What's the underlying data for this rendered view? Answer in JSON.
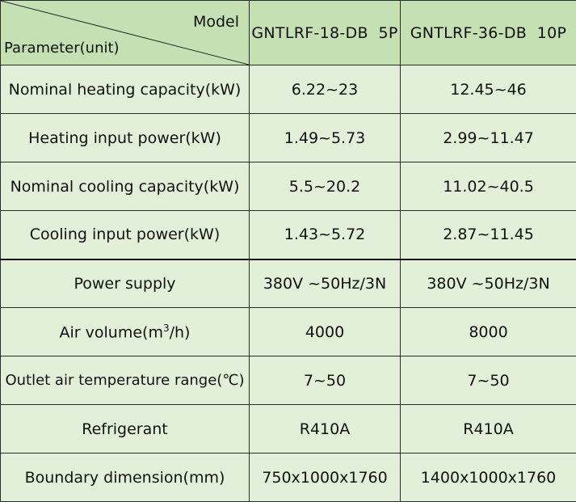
{
  "header": {
    "corner_top": "Model",
    "corner_bottom": "Parameter(unit)",
    "models": [
      "GNTLRF-18-DB  5P",
      "GNTLRF-36-DB  10P"
    ]
  },
  "rows": [
    {
      "param": "Nominal heating capacity(kW)",
      "v1": "6.22~23",
      "v2": "12.45~46"
    },
    {
      "param": "Heating input power(kW)",
      "v1": "1.49~5.73",
      "v2": "2.99~11.47"
    },
    {
      "param": "Nominal cooling capacity(kW)",
      "v1": "5.5~20.2",
      "v2": "11.02~40.5"
    },
    {
      "param": "Cooling input power(kW)",
      "v1": "1.43~5.72",
      "v2": "2.87~11.45"
    },
    {
      "param": "Power supply",
      "v1": "380V ~50Hz/3N",
      "v2": "380V ~50Hz/3N"
    },
    {
      "param_prefix": "Air volume(m",
      "param_sup": "3",
      "param_suffix": "/h)",
      "v1": "4000",
      "v2": "8000"
    },
    {
      "param": "Outlet air temperature range(℃)",
      "v1": "7~50",
      "v2": "7~50"
    },
    {
      "param": "Refrigerant",
      "v1": "R410A",
      "v2": "R410A"
    },
    {
      "param": "Boundary dimension(mm)",
      "v1": "750x1000x1760",
      "v2": "1400x1000x1760"
    }
  ],
  "colors": {
    "header_bg": "#c5e0b3",
    "body_bg": "#e3f0d9",
    "border": "#2b2b2b"
  }
}
